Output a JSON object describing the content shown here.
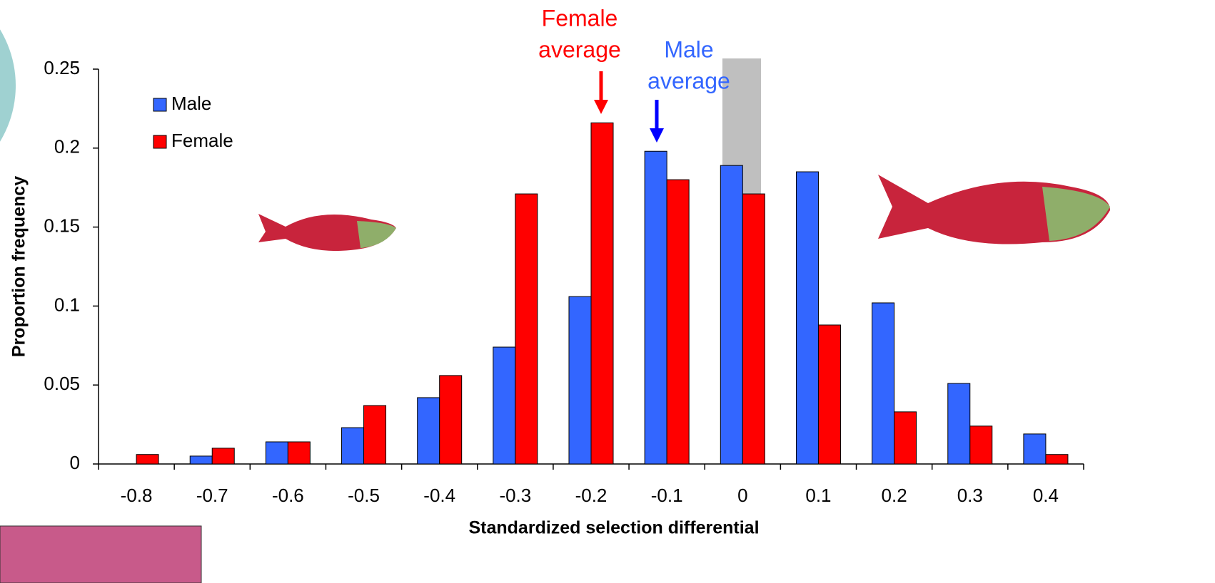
{
  "chart_data": {
    "type": "bar",
    "categories": [
      "-0.8",
      "-0.7",
      "-0.6",
      "-0.5",
      "-0.4",
      "-0.3",
      "-0.2",
      "-0.1",
      "0",
      "0.1",
      "0.2",
      "0.3",
      "0.4"
    ],
    "series": [
      {
        "name": "Male",
        "color": "#3366ff",
        "values": [
          0,
          0.005,
          0.014,
          0.023,
          0.042,
          0.074,
          0.106,
          0.198,
          0.189,
          0.185,
          0.102,
          0.051,
          0.019
        ]
      },
      {
        "name": "Female",
        "color": "#ff0000",
        "values": [
          0.006,
          0.01,
          0.014,
          0.037,
          0.056,
          0.171,
          0.216,
          0.18,
          0.171,
          0.088,
          0.033,
          0.024,
          0.006
        ]
      }
    ],
    "ylim": [
      0,
      0.25
    ],
    "yticks": [
      0,
      0.05,
      0.1,
      0.15,
      0.2,
      0.25
    ],
    "xlabel": "Standardized selection differential",
    "ylabel": "Proportion frequency",
    "annotations": [
      {
        "lines": [
          "Female",
          "average"
        ],
        "color": "#ff0000"
      },
      {
        "lines": [
          "Male",
          "average"
        ],
        "color": "#3366ff"
      }
    ],
    "legend": "upper left"
  }
}
